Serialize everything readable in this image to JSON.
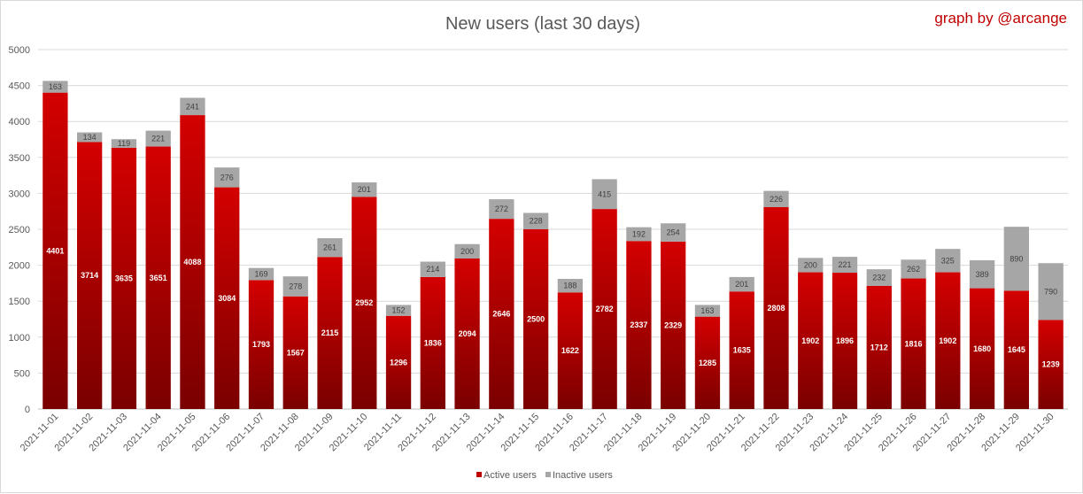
{
  "chart_data": {
    "type": "bar",
    "stacked": true,
    "title": "New users (last 30 days)",
    "credit": "graph by @arcange",
    "categories": [
      "2021-11-01",
      "2021-11-02",
      "2021-11-03",
      "2021-11-04",
      "2021-11-05",
      "2021-11-06",
      "2021-11-07",
      "2021-11-08",
      "2021-11-09",
      "2021-11-10",
      "2021-11-11",
      "2021-11-12",
      "2021-11-13",
      "2021-11-14",
      "2021-11-15",
      "2021-11-16",
      "2021-11-17",
      "2021-11-18",
      "2021-11-19",
      "2021-11-20",
      "2021-11-21",
      "2021-11-22",
      "2021-11-23",
      "2021-11-24",
      "2021-11-25",
      "2021-11-26",
      "2021-11-27",
      "2021-11-28",
      "2021-11-29",
      "2021-11-30"
    ],
    "series": [
      {
        "name": "Active users",
        "color": "#c00000",
        "values": [
          4401,
          3714,
          3635,
          3651,
          4088,
          3084,
          1793,
          1567,
          2115,
          2952,
          1296,
          1836,
          2094,
          2646,
          2500,
          1622,
          2782,
          2337,
          2329,
          1285,
          1635,
          2808,
          1902,
          1896,
          1712,
          1816,
          1902,
          1680,
          1645,
          1239
        ]
      },
      {
        "name": "Inactive users",
        "color": "#a6a6a6",
        "values": [
          163,
          134,
          119,
          221,
          241,
          276,
          169,
          278,
          261,
          201,
          152,
          214,
          200,
          272,
          228,
          188,
          415,
          192,
          254,
          163,
          201,
          226,
          200,
          221,
          232,
          262,
          325,
          389,
          890,
          790
        ]
      }
    ],
    "y_ticks": [
      0,
      500,
      1000,
      1500,
      2000,
      2500,
      3000,
      3500,
      4000,
      4500,
      5000
    ],
    "ylim": [
      0,
      5000
    ],
    "grid": true,
    "legend_position": "bottom"
  }
}
